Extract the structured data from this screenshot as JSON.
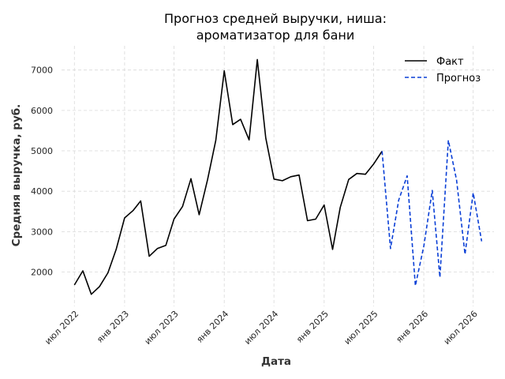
{
  "chart_data": {
    "type": "line",
    "title_lines": [
      "Прогноз средней выручки, ниша:",
      "ароматизатор для бани"
    ],
    "xlabel": "Дата",
    "ylabel": "Средняя выручка, руб.",
    "xlim": [
      "2022-05-15",
      "2026-09-15"
    ],
    "ylim": [
      1150,
      7600
    ],
    "y_ticks": [
      2000,
      3000,
      4000,
      5000,
      6000,
      7000
    ],
    "x_ticks": [
      {
        "date": "2022-07-01",
        "label": "июл 2022"
      },
      {
        "date": "2023-01-01",
        "label": "янв 2023"
      },
      {
        "date": "2023-07-01",
        "label": "июл 2023"
      },
      {
        "date": "2024-01-01",
        "label": "янв 2024"
      },
      {
        "date": "2024-07-01",
        "label": "июл 2024"
      },
      {
        "date": "2025-01-01",
        "label": "янв 2025"
      },
      {
        "date": "2025-07-01",
        "label": "июл 2025"
      },
      {
        "date": "2026-01-01",
        "label": "янв 2026"
      },
      {
        "date": "2026-07-01",
        "label": "июл 2026"
      }
    ],
    "grid": true,
    "legend_position": "top-right",
    "series": [
      {
        "name": "Факт",
        "color": "#000000",
        "style": "solid",
        "points": [
          [
            "2022-07-01",
            1680
          ],
          [
            "2022-08-01",
            2030
          ],
          [
            "2022-09-01",
            1450
          ],
          [
            "2022-10-01",
            1640
          ],
          [
            "2022-11-01",
            1980
          ],
          [
            "2022-12-01",
            2560
          ],
          [
            "2023-01-01",
            3340
          ],
          [
            "2023-02-01",
            3520
          ],
          [
            "2023-03-01",
            3760
          ],
          [
            "2023-04-01",
            2390
          ],
          [
            "2023-05-01",
            2580
          ],
          [
            "2023-06-01",
            2660
          ],
          [
            "2023-07-01",
            3310
          ],
          [
            "2023-08-01",
            3620
          ],
          [
            "2023-09-01",
            4310
          ],
          [
            "2023-10-01",
            3420
          ],
          [
            "2023-11-01",
            4290
          ],
          [
            "2023-12-01",
            5260
          ],
          [
            "2024-01-01",
            6980
          ],
          [
            "2024-02-01",
            5650
          ],
          [
            "2024-03-01",
            5780
          ],
          [
            "2024-04-01",
            5270
          ],
          [
            "2024-05-01",
            7260
          ],
          [
            "2024-06-01",
            5320
          ],
          [
            "2024-07-01",
            4300
          ],
          [
            "2024-08-01",
            4260
          ],
          [
            "2024-09-01",
            4360
          ],
          [
            "2024-10-01",
            4400
          ],
          [
            "2024-11-01",
            3270
          ],
          [
            "2024-12-01",
            3310
          ],
          [
            "2025-01-01",
            3660
          ],
          [
            "2025-02-01",
            2560
          ],
          [
            "2025-03-01",
            3600
          ],
          [
            "2025-04-01",
            4290
          ],
          [
            "2025-05-01",
            4440
          ],
          [
            "2025-06-01",
            4420
          ],
          [
            "2025-07-01",
            4670
          ],
          [
            "2025-08-01",
            4990
          ]
        ]
      },
      {
        "name": "Прогноз",
        "color": "#0a3fd6",
        "style": "dashed",
        "points": [
          [
            "2025-08-01",
            4990
          ],
          [
            "2025-09-01",
            2580
          ],
          [
            "2025-10-01",
            3780
          ],
          [
            "2025-11-01",
            4380
          ],
          [
            "2025-12-01",
            1660
          ],
          [
            "2026-01-01",
            2640
          ],
          [
            "2026-02-01",
            4020
          ],
          [
            "2026-03-01",
            1870
          ],
          [
            "2026-04-01",
            5260
          ],
          [
            "2026-05-01",
            4280
          ],
          [
            "2026-06-01",
            2440
          ],
          [
            "2026-07-01",
            3960
          ],
          [
            "2026-08-01",
            2760
          ]
        ]
      }
    ]
  }
}
